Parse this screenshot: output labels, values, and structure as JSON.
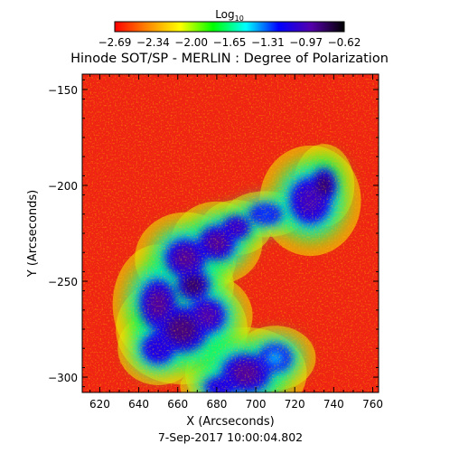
{
  "chart_data": {
    "type": "heatmap",
    "title": "Hinode SOT/SP - MERLIN : Degree of Polarization",
    "xlabel": "X (Arcseconds)",
    "ylabel": "Y (Arcseconds)",
    "timestamp": "7-Sep-2017 10:00:04.802",
    "xlim": [
      611,
      763
    ],
    "ylim": [
      -308,
      -142
    ],
    "x_ticks": [
      620,
      640,
      660,
      680,
      700,
      720,
      740,
      760
    ],
    "y_ticks": [
      -150,
      -200,
      -250,
      -300
    ],
    "x_tick_labels": [
      "620",
      "640",
      "660",
      "680",
      "700",
      "720",
      "740",
      "760"
    ],
    "y_tick_labels": [
      "−150",
      "−200",
      "−250",
      "−300"
    ],
    "colorbar": {
      "title": "Log",
      "title_subscript": "10",
      "range": [
        -2.69,
        -0.62
      ],
      "tick_labels": [
        "−2.69",
        "−2.34",
        "−2.00",
        "−1.65",
        "−1.31",
        "−0.97",
        "−0.62"
      ],
      "colormap": [
        "#ff0000",
        "#ff8800",
        "#ffff00",
        "#00ff00",
        "#00ffff",
        "#0000ff",
        "#5500aa",
        "#000000"
      ]
    },
    "high_polarization_regions": [
      {
        "x": 735,
        "y": -200,
        "value": -0.8,
        "rx": 6,
        "ry": 9
      },
      {
        "x": 728,
        "y": -208,
        "value": -1.0,
        "rx": 10,
        "ry": 12
      },
      {
        "x": 705,
        "y": -215,
        "value": -1.3,
        "rx": 8,
        "ry": 5
      },
      {
        "x": 690,
        "y": -222,
        "value": -1.0,
        "rx": 7,
        "ry": 6
      },
      {
        "x": 680,
        "y": -230,
        "value": -0.9,
        "rx": 9,
        "ry": 9
      },
      {
        "x": 664,
        "y": -238,
        "value": -0.9,
        "rx": 10,
        "ry": 10
      },
      {
        "x": 668,
        "y": -252,
        "value": -0.8,
        "rx": 8,
        "ry": 8
      },
      {
        "x": 650,
        "y": -262,
        "value": -0.9,
        "rx": 9,
        "ry": 13
      },
      {
        "x": 662,
        "y": -275,
        "value": -0.85,
        "rx": 13,
        "ry": 12
      },
      {
        "x": 675,
        "y": -268,
        "value": -0.95,
        "rx": 9,
        "ry": 9
      },
      {
        "x": 650,
        "y": -285,
        "value": -1.1,
        "rx": 8,
        "ry": 8
      },
      {
        "x": 695,
        "y": -298,
        "value": -0.9,
        "rx": 12,
        "ry": 10
      },
      {
        "x": 682,
        "y": -305,
        "value": -1.1,
        "rx": 8,
        "ry": 5
      },
      {
        "x": 710,
        "y": -290,
        "value": -1.4,
        "rx": 8,
        "ry": 7
      }
    ]
  }
}
